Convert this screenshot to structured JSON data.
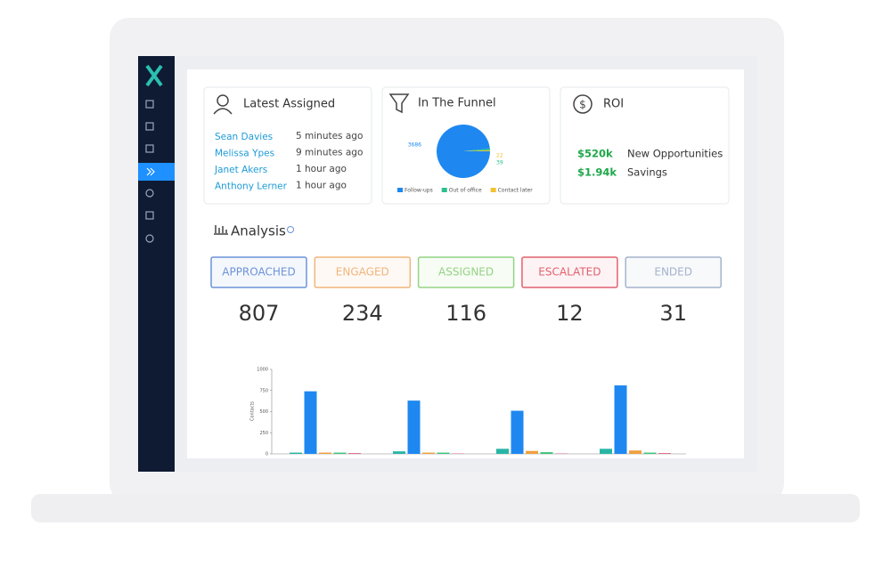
{
  "latest_assigned": {
    "title": "Latest Assigned",
    "rows": [
      {
        "name": "Sean Davies",
        "time": "5 minutes ago"
      },
      {
        "name": "Melissa Ypes",
        "time": "9 minutes ago"
      },
      {
        "name": "Janet Akers",
        "time": "1 hour ago"
      },
      {
        "name": "Anthony Lerner",
        "time": "1 hour ago"
      }
    ]
  },
  "funnel": {
    "title": "In The Funnel",
    "chart": {
      "type": "pie",
      "categories": [
        "Follow-ups",
        "Out of office",
        "Contact later"
      ],
      "values": [
        3686,
        39,
        22
      ],
      "colors": [
        "#1e88f0",
        "#2bbf8e",
        "#f2c230"
      ]
    }
  },
  "roi": {
    "title": "ROI",
    "items": [
      {
        "value": "$520k",
        "label": "New Opportunities"
      },
      {
        "value": "$1.94k",
        "label": "Savings"
      }
    ]
  },
  "analysis": {
    "title": "Analysis",
    "stats": [
      {
        "label": "APPROACHED",
        "value": 807,
        "color": "#6d93d8"
      },
      {
        "label": "ENGAGED",
        "value": 234,
        "color": "#f1b57a"
      },
      {
        "label": "ASSIGNED",
        "value": 116,
        "color": "#93d483"
      },
      {
        "label": "ESCALATED",
        "value": 12,
        "color": "#e2606f"
      },
      {
        "label": "ENDED",
        "value": 31,
        "color": "#a3b3cb"
      }
    ],
    "chart": {
      "type": "bar",
      "y_label": "Contacts",
      "ylim": [
        0,
        1000
      ],
      "yticks": [
        0,
        250,
        500,
        750,
        1000
      ],
      "series": [
        {
          "color": "#28b5a5",
          "values": [
            15,
            30,
            60,
            60
          ]
        },
        {
          "color": "#1e88f0",
          "values": [
            740,
            630,
            510,
            810
          ]
        },
        {
          "color": "#f0a040",
          "values": [
            15,
            15,
            35,
            40
          ]
        },
        {
          "color": "#3cc47c",
          "values": [
            15,
            15,
            20,
            15
          ]
        },
        {
          "color": "#e06a8a",
          "values": [
            10,
            5,
            5,
            10
          ]
        }
      ]
    }
  }
}
